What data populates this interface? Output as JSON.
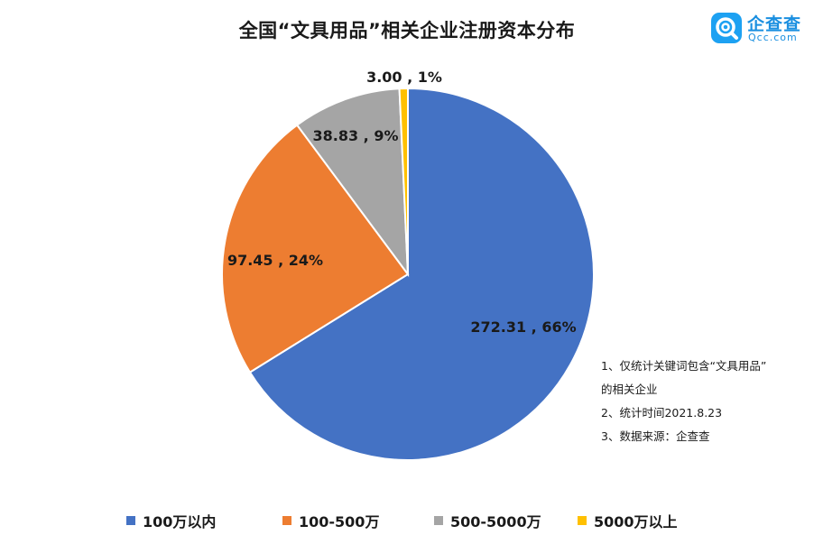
{
  "title": "全国“文具用品”相关企业注册资本分布",
  "brand": {
    "name": "企查查",
    "domain": "Qcc.com",
    "icon": "qcc-magnifier-logo-icon",
    "color": "#1da1f2"
  },
  "notes": [
    "1、仅统计关键词包含“文具用品”",
    "的相关企业",
    "2、统计时间2021.8.23",
    "3、数据来源：企查查"
  ],
  "chart_data": {
    "type": "pie",
    "title": "全国“文具用品”相关企业注册资本分布",
    "legend_position": "bottom",
    "slices": [
      {
        "name": "100万以内",
        "value": 272.31,
        "percent": "66%",
        "label": "272.31 , 66%",
        "color": "#4472c4"
      },
      {
        "name": "100-500万",
        "value": 97.45,
        "percent": "24%",
        "label": "97.45 , 24%",
        "color": "#ed7d31"
      },
      {
        "name": "500-5000万",
        "value": 38.83,
        "percent": "9%",
        "label": "38.83 , 9%",
        "color": "#a5a5a5"
      },
      {
        "name": "5000万以上",
        "value": 3.0,
        "percent": "1%",
        "label": "3.00 , 1%",
        "color": "#ffc000"
      }
    ]
  }
}
